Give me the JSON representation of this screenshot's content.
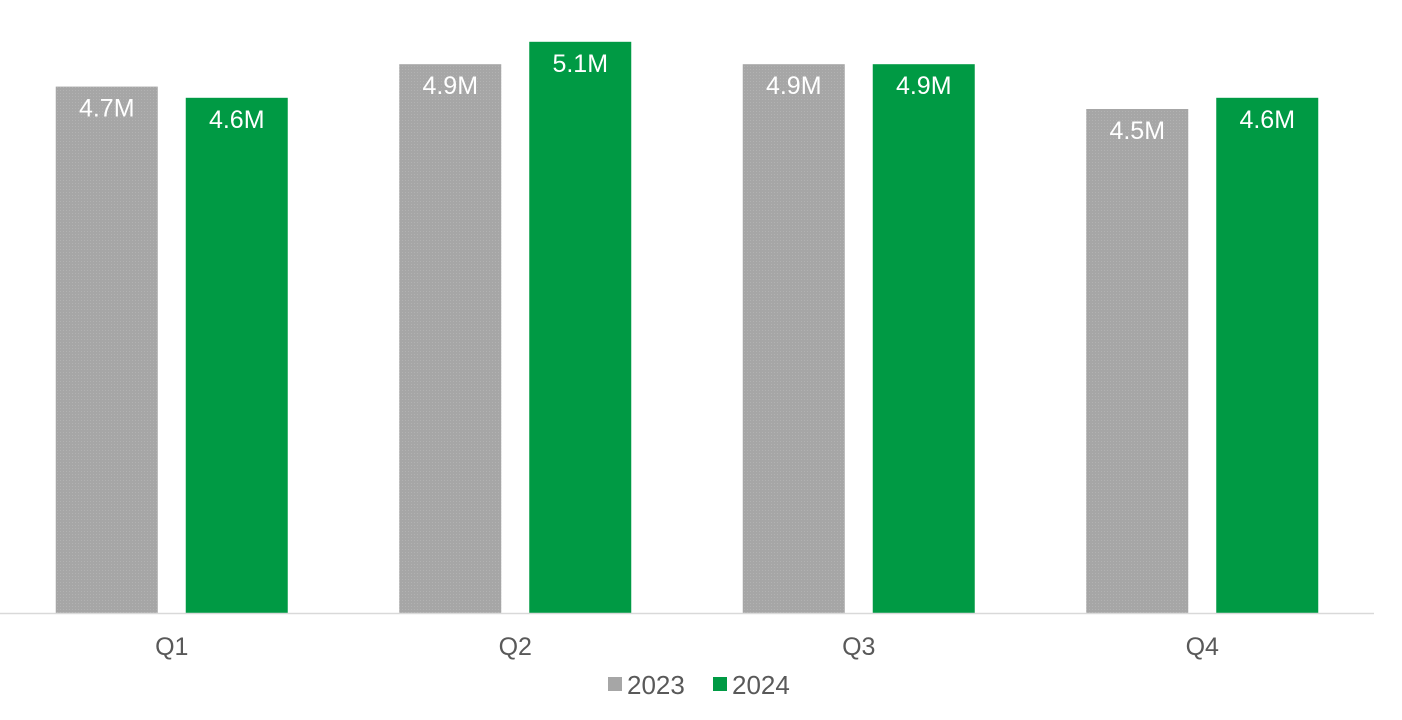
{
  "chart_data": {
    "type": "bar",
    "categories": [
      "Q1",
      "Q2",
      "Q3",
      "Q4"
    ],
    "series": [
      {
        "name": "2023",
        "color": "#a6a6a6",
        "values": [
          4.7,
          4.9,
          4.9,
          4.5
        ],
        "labels": [
          "4.7M",
          "4.9M",
          "4.9M",
          "4.5M"
        ]
      },
      {
        "name": "2024",
        "color": "#009a44",
        "values": [
          4.6,
          5.1,
          4.9,
          4.6
        ],
        "labels": [
          "4.6M",
          "5.1M",
          "4.9M",
          "4.6M"
        ]
      }
    ],
    "title": "",
    "xlabel": "",
    "ylabel": "",
    "ylim": [
      0,
      5.2
    ],
    "grid": false,
    "legend": "bottom",
    "axis_color": "#d9d9d9"
  }
}
